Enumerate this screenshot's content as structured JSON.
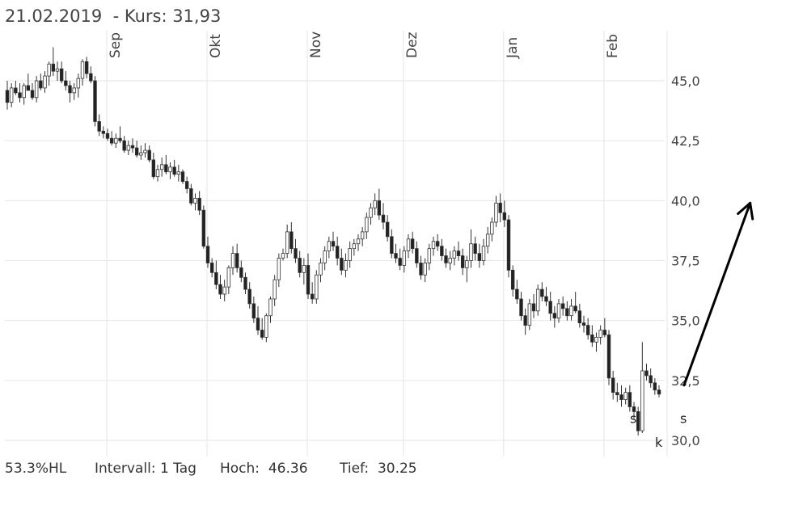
{
  "header": {
    "title": "21.02.2019  - Kurs: 31,93"
  },
  "footer": {
    "range_label": "53.3%HL",
    "interval_label": "Intervall: 1 Tag",
    "high_label": "Hoch:  46.36",
    "low_label": "Tief:  30.25"
  },
  "colors": {
    "up": "#ffffff",
    "down": "#222222",
    "grid": "#e6e6e6",
    "arrow": "#000000"
  },
  "chart_data": {
    "type": "candlestick",
    "title": "",
    "xlabel": "",
    "ylabel": "",
    "ylim": [
      29.8,
      47.5
    ],
    "ticks": [
      {
        "value": 45.0,
        "label": "45,0"
      },
      {
        "value": 42.5,
        "label": "42,5"
      },
      {
        "value": 40.0,
        "label": "40,0"
      },
      {
        "value": 37.5,
        "label": "37,5"
      },
      {
        "value": 35.0,
        "label": "35,0"
      },
      {
        "value": 32.5,
        "label": "32,5"
      },
      {
        "value": 30.0,
        "label": "30,0"
      }
    ],
    "months": [
      {
        "label": "Sep",
        "index": 18
      },
      {
        "label": "Okt",
        "index": 42
      },
      {
        "label": "Nov",
        "index": 66
      },
      {
        "label": "Dez",
        "index": 89
      },
      {
        "label": "Jan",
        "index": 113
      },
      {
        "label": "Feb",
        "index": 137
      }
    ],
    "ohlc": [
      [
        44.6,
        45.0,
        43.8,
        44.1
      ],
      [
        44.1,
        44.9,
        43.9,
        44.7
      ],
      [
        44.7,
        45.0,
        44.4,
        44.5
      ],
      [
        44.5,
        44.9,
        44.1,
        44.3
      ],
      [
        44.3,
        44.9,
        44.0,
        44.8
      ],
      [
        44.8,
        45.3,
        44.6,
        44.6
      ],
      [
        44.6,
        44.9,
        44.2,
        44.3
      ],
      [
        44.3,
        45.2,
        44.1,
        45.0
      ],
      [
        45.0,
        45.3,
        44.6,
        44.7
      ],
      [
        44.7,
        45.4,
        44.5,
        45.2
      ],
      [
        45.2,
        45.8,
        44.8,
        45.7
      ],
      [
        45.7,
        46.4,
        45.2,
        45.4
      ],
      [
        45.4,
        45.8,
        45.0,
        45.5
      ],
      [
        45.5,
        45.8,
        44.9,
        45.0
      ],
      [
        45.0,
        45.4,
        44.6,
        44.8
      ],
      [
        44.8,
        45.0,
        44.1,
        44.5
      ],
      [
        44.5,
        44.9,
        44.2,
        44.7
      ],
      [
        44.7,
        45.3,
        44.3,
        45.1
      ],
      [
        45.1,
        45.9,
        44.8,
        45.8
      ],
      [
        45.8,
        46.0,
        45.1,
        45.3
      ],
      [
        45.3,
        45.6,
        44.9,
        45.0
      ],
      [
        45.0,
        45.2,
        43.1,
        43.3
      ],
      [
        43.3,
        43.6,
        42.7,
        42.9
      ],
      [
        42.9,
        43.1,
        42.6,
        42.8
      ],
      [
        42.8,
        43.0,
        42.5,
        42.6
      ],
      [
        42.6,
        42.9,
        42.3,
        42.4
      ],
      [
        42.4,
        42.8,
        42.2,
        42.6
      ],
      [
        42.6,
        43.1,
        42.4,
        42.5
      ],
      [
        42.5,
        42.7,
        42.0,
        42.1
      ],
      [
        42.1,
        42.5,
        41.9,
        42.3
      ],
      [
        42.3,
        42.6,
        42.0,
        42.2
      ],
      [
        42.2,
        42.5,
        41.8,
        41.9
      ],
      [
        41.9,
        42.3,
        41.7,
        42.0
      ],
      [
        42.0,
        42.4,
        41.8,
        42.1
      ],
      [
        42.1,
        42.3,
        41.6,
        41.7
      ],
      [
        41.7,
        42.0,
        40.9,
        41.0
      ],
      [
        41.0,
        41.5,
        40.8,
        41.3
      ],
      [
        41.3,
        41.8,
        41.0,
        41.5
      ],
      [
        41.5,
        41.9,
        41.1,
        41.2
      ],
      [
        41.2,
        41.6,
        40.9,
        41.4
      ],
      [
        41.4,
        41.7,
        41.0,
        41.1
      ],
      [
        41.1,
        41.5,
        40.8,
        41.2
      ],
      [
        41.2,
        41.3,
        40.7,
        40.8
      ],
      [
        40.8,
        41.0,
        40.3,
        40.5
      ],
      [
        40.5,
        40.7,
        39.8,
        39.9
      ],
      [
        39.9,
        40.3,
        39.6,
        40.1
      ],
      [
        40.1,
        40.4,
        39.4,
        39.6
      ],
      [
        39.6,
        39.8,
        38.0,
        38.1
      ],
      [
        38.1,
        38.5,
        37.2,
        37.4
      ],
      [
        37.4,
        37.6,
        36.8,
        37.0
      ],
      [
        37.0,
        37.5,
        36.3,
        36.5
      ],
      [
        36.5,
        36.9,
        35.9,
        36.1
      ],
      [
        36.1,
        36.7,
        35.8,
        36.4
      ],
      [
        36.4,
        37.3,
        36.1,
        37.2
      ],
      [
        37.2,
        38.1,
        36.9,
        37.8
      ],
      [
        37.8,
        38.2,
        37.0,
        37.2
      ],
      [
        37.2,
        37.5,
        36.6,
        36.8
      ],
      [
        36.8,
        37.0,
        36.1,
        36.3
      ],
      [
        36.3,
        36.6,
        35.5,
        35.7
      ],
      [
        35.7,
        36.0,
        34.9,
        35.1
      ],
      [
        35.1,
        35.6,
        34.4,
        34.6
      ],
      [
        34.6,
        35.1,
        34.2,
        34.3
      ],
      [
        34.3,
        35.3,
        34.1,
        35.2
      ],
      [
        35.2,
        36.0,
        34.9,
        35.9
      ],
      [
        35.9,
        36.9,
        35.6,
        36.7
      ],
      [
        36.7,
        37.8,
        36.4,
        37.6
      ],
      [
        37.6,
        38.0,
        37.5,
        37.8
      ],
      [
        37.8,
        39.0,
        37.6,
        38.7
      ],
      [
        38.7,
        39.1,
        37.8,
        38.0
      ],
      [
        38.0,
        38.4,
        37.4,
        37.6
      ],
      [
        37.6,
        37.9,
        36.8,
        37.0
      ],
      [
        37.0,
        37.6,
        36.5,
        37.3
      ],
      [
        37.3,
        37.8,
        35.9,
        36.1
      ],
      [
        36.1,
        36.6,
        35.7,
        35.9
      ],
      [
        35.9,
        37.1,
        35.7,
        36.9
      ],
      [
        36.9,
        37.6,
        36.6,
        37.4
      ],
      [
        37.4,
        38.1,
        37.1,
        37.9
      ],
      [
        37.9,
        38.5,
        37.6,
        38.3
      ],
      [
        38.3,
        38.7,
        37.9,
        38.1
      ],
      [
        38.1,
        38.5,
        37.3,
        37.6
      ],
      [
        37.6,
        38.0,
        36.9,
        37.1
      ],
      [
        37.1,
        37.8,
        36.8,
        37.5
      ],
      [
        37.5,
        38.3,
        37.2,
        38.0
      ],
      [
        38.0,
        38.4,
        37.7,
        38.2
      ],
      [
        38.2,
        38.6,
        37.9,
        38.4
      ],
      [
        38.4,
        38.9,
        38.1,
        38.7
      ],
      [
        38.7,
        39.5,
        38.4,
        39.3
      ],
      [
        39.3,
        39.9,
        39.0,
        39.7
      ],
      [
        39.7,
        40.3,
        39.4,
        40.0
      ],
      [
        40.0,
        40.5,
        39.2,
        39.4
      ],
      [
        39.4,
        39.9,
        38.8,
        39.1
      ],
      [
        39.1,
        39.4,
        38.3,
        38.5
      ],
      [
        38.5,
        38.8,
        37.6,
        37.8
      ],
      [
        37.8,
        38.2,
        37.4,
        37.6
      ],
      [
        37.6,
        38.0,
        37.1,
        37.3
      ],
      [
        37.3,
        38.1,
        37.0,
        37.9
      ],
      [
        37.9,
        38.6,
        37.6,
        38.4
      ],
      [
        38.4,
        38.7,
        37.8,
        38.0
      ],
      [
        38.0,
        38.3,
        37.2,
        37.4
      ],
      [
        37.4,
        37.7,
        36.7,
        36.9
      ],
      [
        36.9,
        37.6,
        36.6,
        37.4
      ],
      [
        37.4,
        38.2,
        37.1,
        38.0
      ],
      [
        38.0,
        38.5,
        37.7,
        38.3
      ],
      [
        38.3,
        38.6,
        37.9,
        38.1
      ],
      [
        38.1,
        38.4,
        37.5,
        37.7
      ],
      [
        37.7,
        38.0,
        37.2,
        37.4
      ],
      [
        37.4,
        37.9,
        37.1,
        37.6
      ],
      [
        37.6,
        38.1,
        37.3,
        37.9
      ],
      [
        37.9,
        38.3,
        37.5,
        37.7
      ],
      [
        37.7,
        38.0,
        36.9,
        37.2
      ],
      [
        37.2,
        37.7,
        36.6,
        37.5
      ],
      [
        37.5,
        38.8,
        37.2,
        38.2
      ],
      [
        38.2,
        38.5,
        37.5,
        37.8
      ],
      [
        37.8,
        38.2,
        37.2,
        37.5
      ],
      [
        37.5,
        38.4,
        37.3,
        38.1
      ],
      [
        38.1,
        38.9,
        37.8,
        38.6
      ],
      [
        38.6,
        39.3,
        38.3,
        39.1
      ],
      [
        39.1,
        40.2,
        38.9,
        39.9
      ],
      [
        39.9,
        40.3,
        39.1,
        39.5
      ],
      [
        39.5,
        40.0,
        38.9,
        39.2
      ],
      [
        39.2,
        39.4,
        36.8,
        37.1
      ],
      [
        37.1,
        37.3,
        36.0,
        36.3
      ],
      [
        36.3,
        36.7,
        35.7,
        35.9
      ],
      [
        35.9,
        36.2,
        35.0,
        35.2
      ],
      [
        35.2,
        35.5,
        34.4,
        34.8
      ],
      [
        34.8,
        35.9,
        34.6,
        35.7
      ],
      [
        35.7,
        36.1,
        35.1,
        35.4
      ],
      [
        35.4,
        36.5,
        35.2,
        36.3
      ],
      [
        36.3,
        36.6,
        35.8,
        36.0
      ],
      [
        36.0,
        36.4,
        35.6,
        35.8
      ],
      [
        35.8,
        36.2,
        35.0,
        35.3
      ],
      [
        35.3,
        35.6,
        34.7,
        35.1
      ],
      [
        35.1,
        35.9,
        34.9,
        35.7
      ],
      [
        35.7,
        36.0,
        35.2,
        35.5
      ],
      [
        35.5,
        35.8,
        35.0,
        35.2
      ],
      [
        35.2,
        35.9,
        35.0,
        35.6
      ],
      [
        35.6,
        36.2,
        35.3,
        35.4
      ],
      [
        35.4,
        35.7,
        34.7,
        34.9
      ],
      [
        34.9,
        35.2,
        34.5,
        34.8
      ],
      [
        34.8,
        35.1,
        34.2,
        34.4
      ],
      [
        34.4,
        34.8,
        33.9,
        34.1
      ],
      [
        34.1,
        34.5,
        33.7,
        34.3
      ],
      [
        34.3,
        34.8,
        34.0,
        34.6
      ],
      [
        34.6,
        35.1,
        34.3,
        34.4
      ],
      [
        34.4,
        34.6,
        32.3,
        32.6
      ],
      [
        32.6,
        32.9,
        31.7,
        32.0
      ],
      [
        32.0,
        32.4,
        31.6,
        31.9
      ],
      [
        31.9,
        32.3,
        31.4,
        31.7
      ],
      [
        31.7,
        32.2,
        31.5,
        32.0
      ],
      [
        32.0,
        32.3,
        31.2,
        31.4
      ],
      [
        31.4,
        31.6,
        30.9,
        31.2
      ],
      [
        31.2,
        31.4,
        30.2,
        30.4
      ],
      [
        30.4,
        34.1,
        30.3,
        32.9
      ],
      [
        32.9,
        33.2,
        32.5,
        32.7
      ],
      [
        32.7,
        33.0,
        32.2,
        32.4
      ],
      [
        32.4,
        32.6,
        31.9,
        32.1
      ],
      [
        32.1,
        32.3,
        31.8,
        31.93
      ]
    ],
    "annotations": [
      {
        "text": "s",
        "index": 150,
        "price": 30.9
      },
      {
        "text": "k",
        "index": 156,
        "price": 29.9
      },
      {
        "text": "s",
        "index": 162,
        "price": 30.9
      }
    ],
    "arrow": {
      "from_index": 162,
      "from_price": 32.3,
      "to_index": 172,
      "to_price": 39.9
    }
  }
}
